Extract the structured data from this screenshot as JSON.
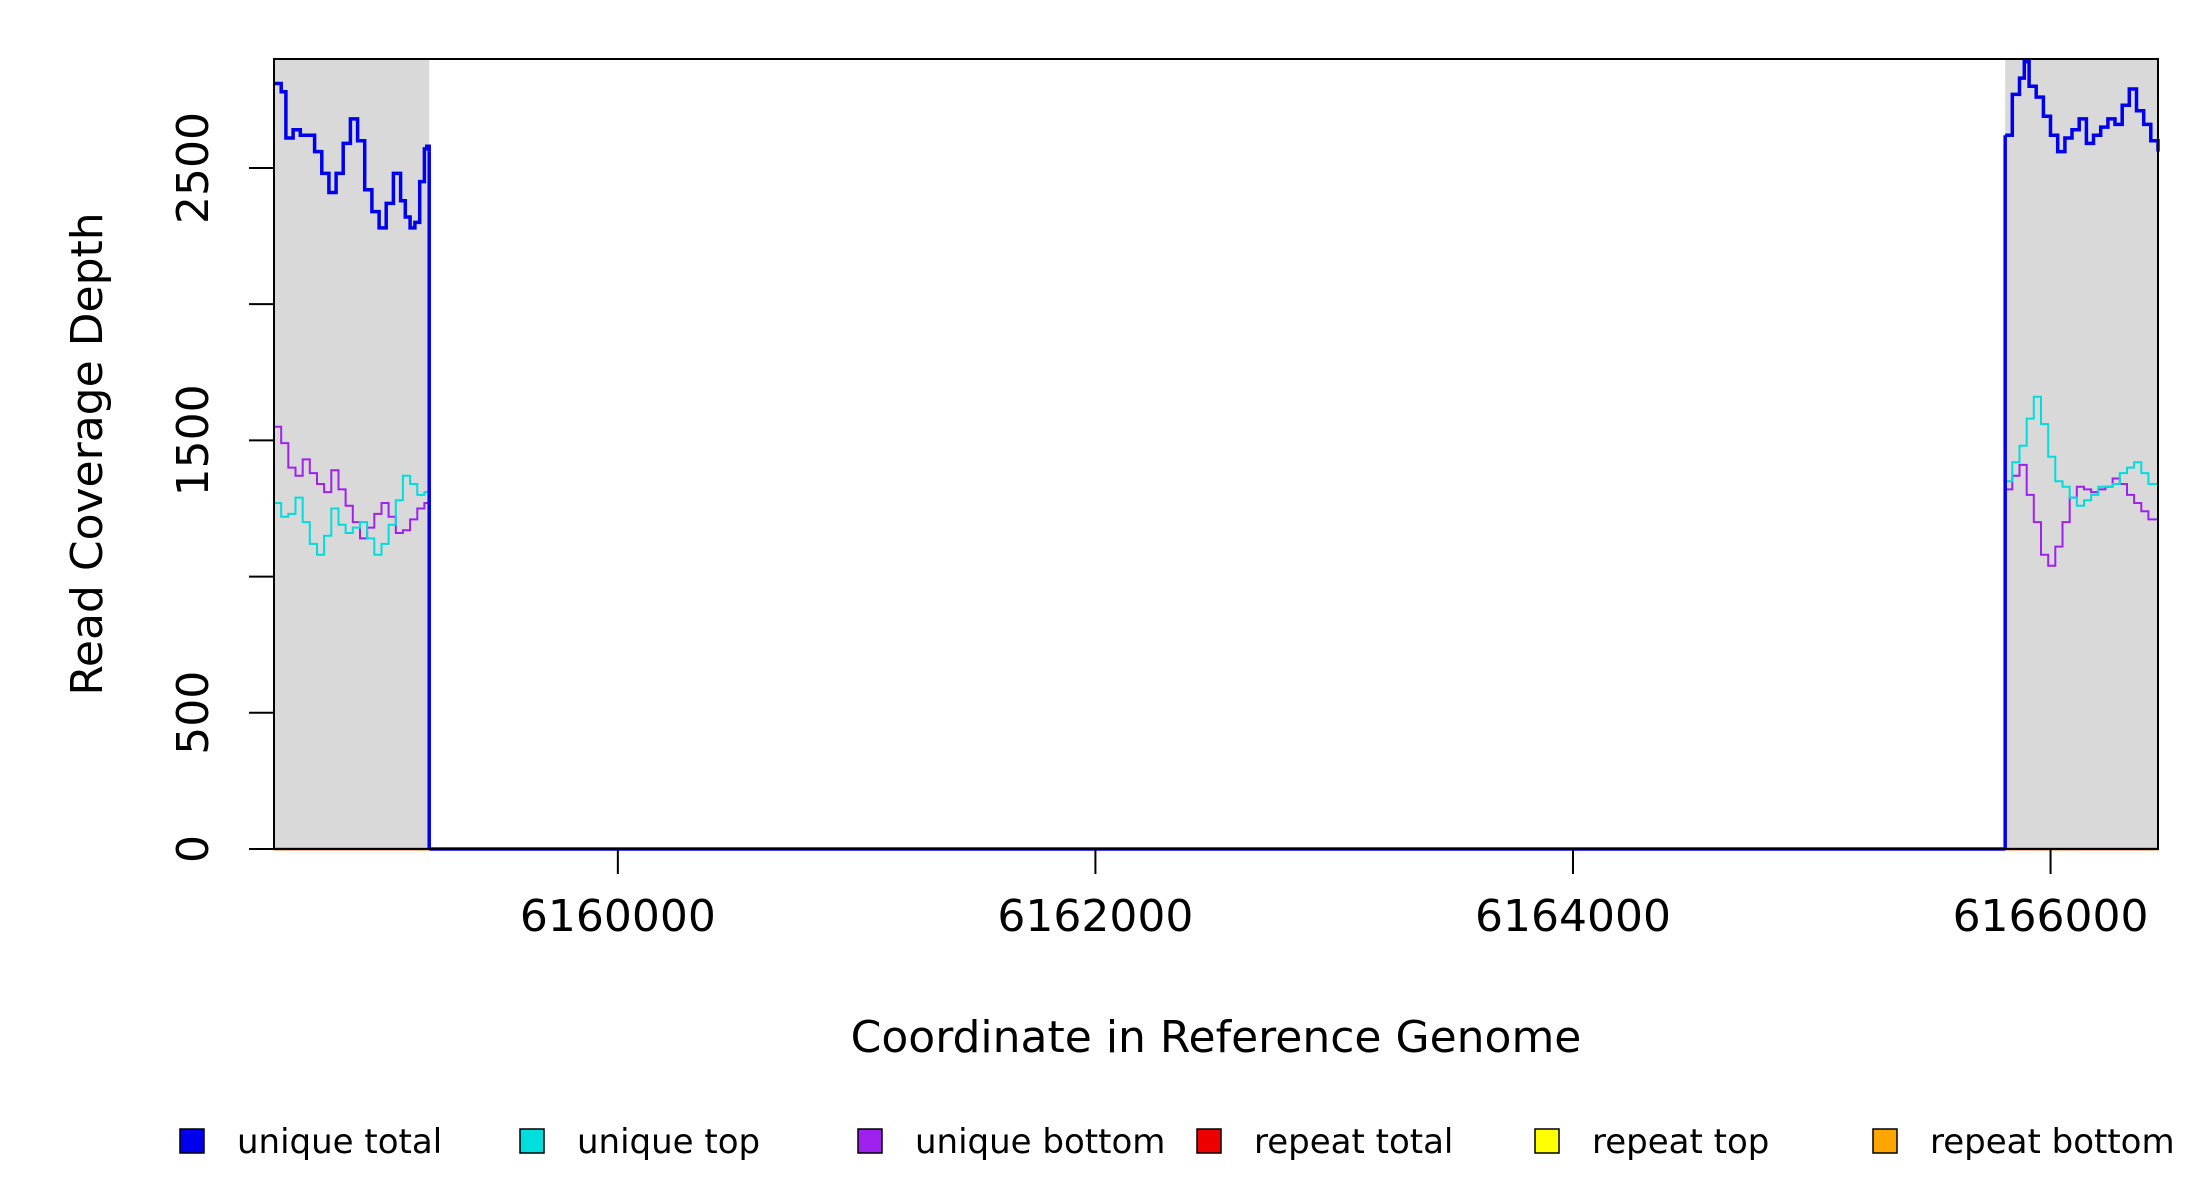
{
  "chart_data": {
    "type": "line",
    "xlabel": "Coordinate in Reference Genome",
    "ylabel": "Read Coverage Depth",
    "xlim": [
      6158560,
      6166450
    ],
    "ylim": [
      0,
      2900
    ],
    "x_ticks": [
      6160000,
      6162000,
      6164000,
      6166000
    ],
    "x_tick_labels": [
      "6160000",
      "6162000",
      "6164000",
      "6166000"
    ],
    "y_ticks": [
      0,
      500,
      1000,
      1500,
      2000,
      2500
    ],
    "y_tick_labels": [
      "0",
      "500",
      "",
      "1500",
      "",
      "2500"
    ],
    "shaded_regions": [
      {
        "start": 6158560,
        "end": 6159210,
        "color": "#d9d9d9"
      },
      {
        "start": 6165810,
        "end": 6166450,
        "color": "#d9d9d9"
      }
    ],
    "legend_placement": "bottom",
    "series": [
      {
        "name": "unique total",
        "color": "#0000ee",
        "segments": [
          [
            [
              6158560,
              2810
            ],
            [
              6158590,
              2780
            ],
            [
              6158610,
              2610
            ],
            [
              6158640,
              2640
            ],
            [
              6158670,
              2620
            ],
            [
              6158700,
              2620
            ],
            [
              6158730,
              2560
            ],
            [
              6158760,
              2480
            ],
            [
              6158790,
              2410
            ],
            [
              6158820,
              2480
            ],
            [
              6158850,
              2590
            ],
            [
              6158880,
              2680
            ],
            [
              6158910,
              2600
            ],
            [
              6158940,
              2420
            ],
            [
              6158970,
              2340
            ],
            [
              6159000,
              2280
            ],
            [
              6159030,
              2370
            ],
            [
              6159060,
              2480
            ],
            [
              6159090,
              2380
            ],
            [
              6159110,
              2320
            ],
            [
              6159130,
              2280
            ],
            [
              6159150,
              2300
            ],
            [
              6159170,
              2450
            ],
            [
              6159190,
              2570
            ],
            [
              6159200,
              2580
            ],
            [
              6159210,
              2560
            ]
          ],
          [
            [
              6159210,
              0
            ],
            [
              6165810,
              0
            ]
          ],
          [
            [
              6165810,
              2620
            ],
            [
              6165840,
              2770
            ],
            [
              6165870,
              2830
            ],
            [
              6165890,
              2890
            ],
            [
              6165910,
              2800
            ],
            [
              6165940,
              2760
            ],
            [
              6165970,
              2690
            ],
            [
              6166000,
              2620
            ],
            [
              6166030,
              2560
            ],
            [
              6166060,
              2610
            ],
            [
              6166090,
              2640
            ],
            [
              6166120,
              2680
            ],
            [
              6166150,
              2590
            ],
            [
              6166180,
              2620
            ],
            [
              6166210,
              2650
            ],
            [
              6166240,
              2680
            ],
            [
              6166270,
              2660
            ],
            [
              6166300,
              2730
            ],
            [
              6166330,
              2790
            ],
            [
              6166360,
              2710
            ],
            [
              6166390,
              2660
            ],
            [
              6166420,
              2600
            ],
            [
              6166450,
              2560
            ]
          ]
        ]
      },
      {
        "name": "unique top",
        "color": "#00dddd",
        "segments": [
          [
            [
              6158560,
              1270
            ],
            [
              6158590,
              1220
            ],
            [
              6158620,
              1230
            ],
            [
              6158650,
              1290
            ],
            [
              6158680,
              1200
            ],
            [
              6158710,
              1120
            ],
            [
              6158740,
              1080
            ],
            [
              6158770,
              1150
            ],
            [
              6158800,
              1250
            ],
            [
              6158830,
              1190
            ],
            [
              6158860,
              1160
            ],
            [
              6158890,
              1180
            ],
            [
              6158920,
              1200
            ],
            [
              6158950,
              1140
            ],
            [
              6158980,
              1080
            ],
            [
              6159010,
              1120
            ],
            [
              6159040,
              1190
            ],
            [
              6159070,
              1280
            ],
            [
              6159100,
              1370
            ],
            [
              6159130,
              1340
            ],
            [
              6159160,
              1300
            ],
            [
              6159190,
              1310
            ],
            [
              6159210,
              1290
            ]
          ],
          [
            [
              6159210,
              0
            ],
            [
              6165810,
              0
            ]
          ],
          [
            [
              6165810,
              1350
            ],
            [
              6165840,
              1420
            ],
            [
              6165870,
              1480
            ],
            [
              6165900,
              1580
            ],
            [
              6165930,
              1660
            ],
            [
              6165960,
              1560
            ],
            [
              6165990,
              1440
            ],
            [
              6166020,
              1350
            ],
            [
              6166050,
              1330
            ],
            [
              6166080,
              1290
            ],
            [
              6166110,
              1260
            ],
            [
              6166140,
              1280
            ],
            [
              6166170,
              1300
            ],
            [
              6166200,
              1330
            ],
            [
              6166230,
              1330
            ],
            [
              6166260,
              1340
            ],
            [
              6166290,
              1380
            ],
            [
              6166320,
              1400
            ],
            [
              6166350,
              1420
            ],
            [
              6166380,
              1380
            ],
            [
              6166410,
              1340
            ],
            [
              6166450,
              1350
            ]
          ]
        ]
      },
      {
        "name": "unique bottom",
        "color": "#a020f0",
        "segments": [
          [
            [
              6158560,
              1550
            ],
            [
              6158590,
              1490
            ],
            [
              6158620,
              1400
            ],
            [
              6158650,
              1370
            ],
            [
              6158680,
              1430
            ],
            [
              6158710,
              1380
            ],
            [
              6158740,
              1340
            ],
            [
              6158770,
              1310
            ],
            [
              6158800,
              1390
            ],
            [
              6158830,
              1320
            ],
            [
              6158860,
              1260
            ],
            [
              6158890,
              1200
            ],
            [
              6158920,
              1140
            ],
            [
              6158950,
              1180
            ],
            [
              6158980,
              1230
            ],
            [
              6159010,
              1270
            ],
            [
              6159040,
              1220
            ],
            [
              6159070,
              1160
            ],
            [
              6159100,
              1170
            ],
            [
              6159130,
              1210
            ],
            [
              6159160,
              1250
            ],
            [
              6159190,
              1270
            ],
            [
              6159210,
              1280
            ]
          ],
          [
            [
              6159210,
              0
            ],
            [
              6165810,
              0
            ]
          ],
          [
            [
              6165810,
              1320
            ],
            [
              6165840,
              1370
            ],
            [
              6165870,
              1410
            ],
            [
              6165900,
              1300
            ],
            [
              6165930,
              1200
            ],
            [
              6165960,
              1080
            ],
            [
              6165990,
              1040
            ],
            [
              6166020,
              1110
            ],
            [
              6166050,
              1200
            ],
            [
              6166080,
              1290
            ],
            [
              6166110,
              1330
            ],
            [
              6166140,
              1320
            ],
            [
              6166170,
              1310
            ],
            [
              6166200,
              1320
            ],
            [
              6166230,
              1330
            ],
            [
              6166260,
              1360
            ],
            [
              6166290,
              1340
            ],
            [
              6166320,
              1300
            ],
            [
              6166350,
              1270
            ],
            [
              6166380,
              1240
            ],
            [
              6166410,
              1210
            ],
            [
              6166450,
              1200
            ]
          ]
        ]
      },
      {
        "name": "repeat total",
        "color": "#ee0000",
        "segments": [
          [
            [
              6158560,
              0
            ],
            [
              6166450,
              0
            ]
          ]
        ]
      },
      {
        "name": "repeat top",
        "color": "#ffff00",
        "segments": [
          [
            [
              6158560,
              0
            ],
            [
              6166450,
              0
            ]
          ]
        ]
      },
      {
        "name": "repeat bottom",
        "color": "#ffa500",
        "segments": [
          [
            [
              6158560,
              0
            ],
            [
              6166450,
              0
            ]
          ]
        ]
      }
    ]
  }
}
